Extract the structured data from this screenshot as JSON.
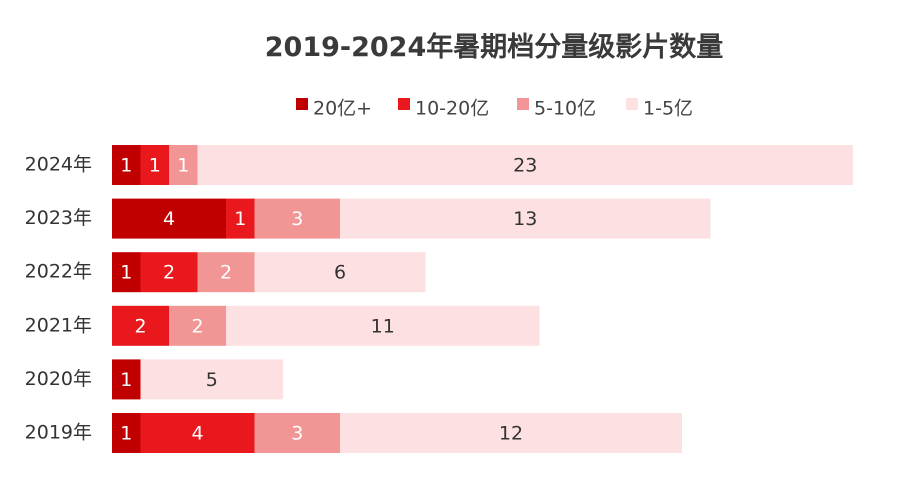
{
  "chart_data": {
    "type": "bar",
    "orientation": "horizontal",
    "stacked": true,
    "title": "2019-2024年暑期档分量级影片数量",
    "categories": [
      "2024年",
      "2023年",
      "2022年",
      "2021年",
      "2020年",
      "2019年"
    ],
    "series": [
      {
        "name": "20亿+",
        "color": "#c00000",
        "values": [
          1,
          4,
          1,
          0,
          1,
          1
        ]
      },
      {
        "name": "10-20亿",
        "color": "#e8181c",
        "values": [
          1,
          1,
          2,
          2,
          0,
          4
        ]
      },
      {
        "name": "5-10亿",
        "color": "#f19595",
        "values": [
          1,
          3,
          2,
          2,
          0,
          3
        ]
      },
      {
        "name": "1-5亿",
        "color": "#fde0e1",
        "values": [
          23,
          13,
          6,
          11,
          5,
          12
        ]
      }
    ],
    "xlim": [
      0,
      26
    ],
    "grid": false,
    "legend": "top"
  }
}
